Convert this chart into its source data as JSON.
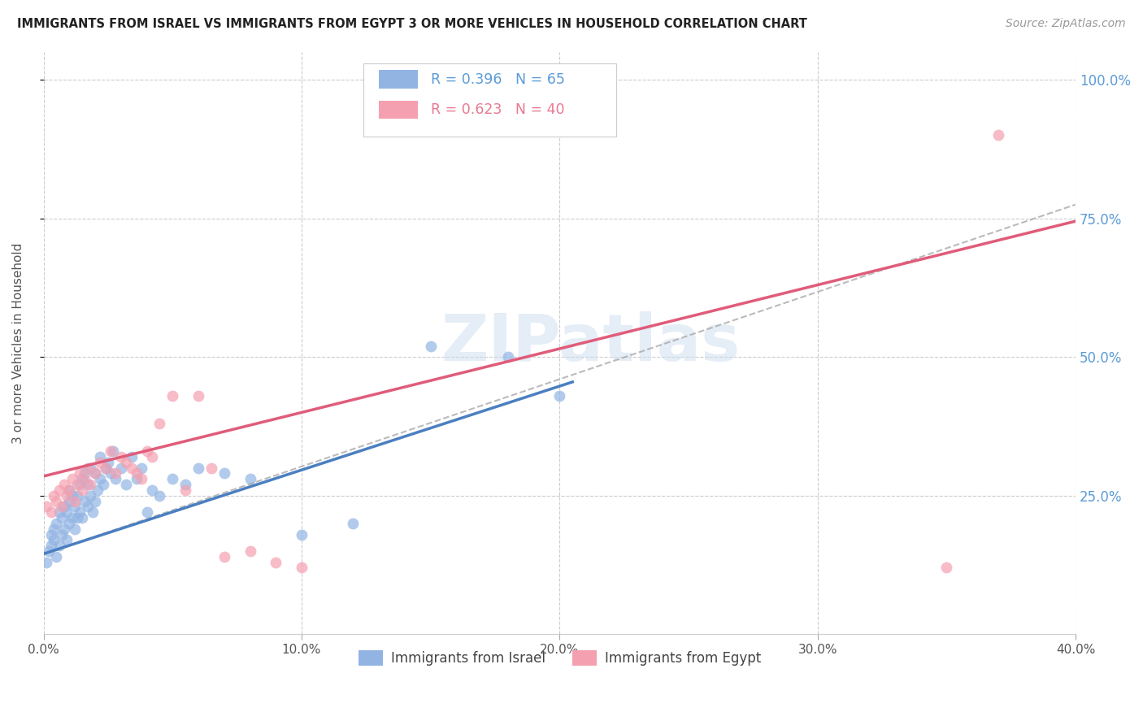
{
  "title": "IMMIGRANTS FROM ISRAEL VS IMMIGRANTS FROM EGYPT 3 OR MORE VEHICLES IN HOUSEHOLD CORRELATION CHART",
  "source": "Source: ZipAtlas.com",
  "ylabel": "3 or more Vehicles in Household",
  "xlim": [
    0.0,
    0.4
  ],
  "ylim": [
    0.0,
    1.05
  ],
  "xtick_labels": [
    "0.0%",
    "10.0%",
    "20.0%",
    "30.0%",
    "40.0%"
  ],
  "xtick_vals": [
    0.0,
    0.1,
    0.2,
    0.3,
    0.4
  ],
  "ytick_labels": [
    "25.0%",
    "50.0%",
    "75.0%",
    "100.0%"
  ],
  "ytick_vals": [
    0.25,
    0.5,
    0.75,
    1.0
  ],
  "R_israel": 0.396,
  "N_israel": 65,
  "R_egypt": 0.623,
  "N_egypt": 40,
  "color_israel": "#92b4e3",
  "color_egypt": "#f4a0b0",
  "color_israel_line": "#4a7fc1",
  "color_egypt_line": "#e05c7a",
  "color_dashed": "#aaaaaa",
  "color_israel_text": "#5b9bd5",
  "color_egypt_text": "#e97891",
  "color_right_axis": "#5b9bd5",
  "watermark": "ZIPatlas",
  "israel_x": [
    0.001,
    0.002,
    0.003,
    0.003,
    0.004,
    0.004,
    0.005,
    0.005,
    0.006,
    0.006,
    0.007,
    0.007,
    0.008,
    0.008,
    0.009,
    0.009,
    0.01,
    0.01,
    0.01,
    0.011,
    0.011,
    0.012,
    0.012,
    0.013,
    0.013,
    0.014,
    0.014,
    0.015,
    0.015,
    0.016,
    0.016,
    0.017,
    0.017,
    0.018,
    0.018,
    0.019,
    0.02,
    0.02,
    0.021,
    0.022,
    0.022,
    0.023,
    0.024,
    0.025,
    0.026,
    0.027,
    0.028,
    0.03,
    0.032,
    0.034,
    0.036,
    0.038,
    0.04,
    0.042,
    0.045,
    0.05,
    0.055,
    0.06,
    0.07,
    0.08,
    0.1,
    0.12,
    0.15,
    0.18,
    0.2
  ],
  "israel_y": [
    0.13,
    0.15,
    0.16,
    0.18,
    0.17,
    0.19,
    0.14,
    0.2,
    0.16,
    0.22,
    0.18,
    0.21,
    0.19,
    0.23,
    0.17,
    0.22,
    0.2,
    0.24,
    0.26,
    0.21,
    0.25,
    0.19,
    0.23,
    0.21,
    0.25,
    0.22,
    0.27,
    0.21,
    0.28,
    0.24,
    0.29,
    0.23,
    0.27,
    0.25,
    0.3,
    0.22,
    0.24,
    0.29,
    0.26,
    0.28,
    0.32,
    0.27,
    0.3,
    0.31,
    0.29,
    0.33,
    0.28,
    0.3,
    0.27,
    0.32,
    0.28,
    0.3,
    0.22,
    0.26,
    0.25,
    0.28,
    0.27,
    0.3,
    0.29,
    0.28,
    0.18,
    0.2,
    0.52,
    0.5,
    0.43
  ],
  "egypt_x": [
    0.001,
    0.003,
    0.004,
    0.005,
    0.006,
    0.007,
    0.008,
    0.009,
    0.01,
    0.011,
    0.012,
    0.013,
    0.014,
    0.015,
    0.016,
    0.017,
    0.018,
    0.02,
    0.022,
    0.024,
    0.026,
    0.028,
    0.03,
    0.032,
    0.034,
    0.036,
    0.038,
    0.04,
    0.042,
    0.045,
    0.05,
    0.055,
    0.06,
    0.065,
    0.07,
    0.08,
    0.09,
    0.1,
    0.35,
    0.37
  ],
  "egypt_y": [
    0.23,
    0.22,
    0.25,
    0.24,
    0.26,
    0.23,
    0.27,
    0.25,
    0.26,
    0.28,
    0.24,
    0.27,
    0.29,
    0.26,
    0.28,
    0.3,
    0.27,
    0.29,
    0.31,
    0.3,
    0.33,
    0.29,
    0.32,
    0.31,
    0.3,
    0.29,
    0.28,
    0.33,
    0.32,
    0.38,
    0.43,
    0.26,
    0.43,
    0.3,
    0.14,
    0.15,
    0.13,
    0.12,
    0.12,
    0.9
  ],
  "israel_line_x0": 0.0,
  "israel_line_y0": 0.145,
  "israel_line_x1": 0.205,
  "israel_line_y1": 0.455,
  "egypt_line_x0": 0.0,
  "egypt_line_y0": 0.285,
  "egypt_line_x1": 0.4,
  "egypt_line_y1": 0.745,
  "dashed_line_x0": 0.0,
  "dashed_line_y0": 0.145,
  "dashed_line_x1": 0.4,
  "dashed_line_y1": 0.775,
  "bg_color": "#ffffff",
  "grid_color": "#cccccc",
  "grid_style": "--"
}
